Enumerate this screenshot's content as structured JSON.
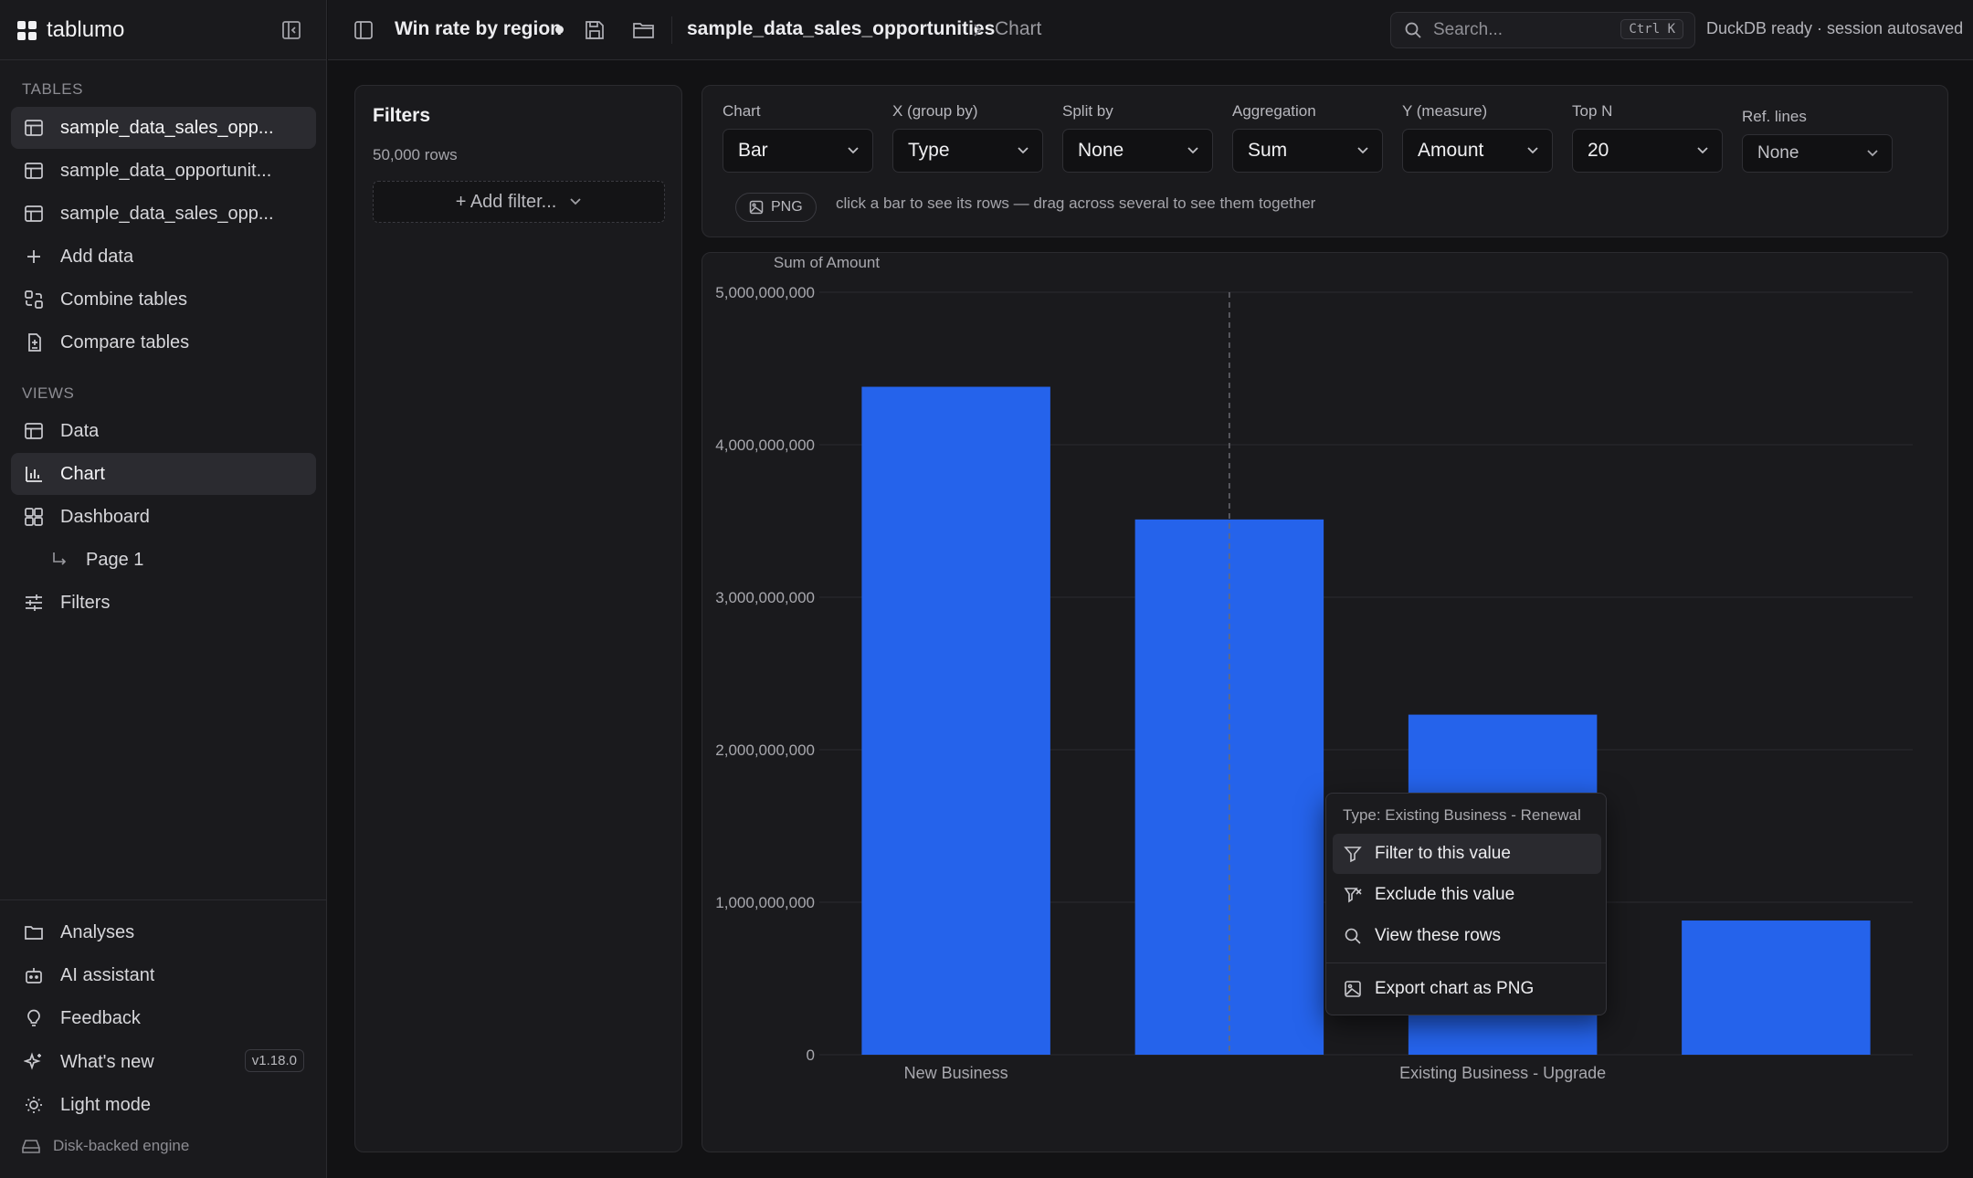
{
  "app": {
    "name": "tablumo",
    "version": "v1.18.0",
    "engine_label": "Disk-backed engine"
  },
  "sidebar": {
    "tables_label": "TABLES",
    "tables": [
      {
        "label": "sample_data_sales_opp...",
        "active": true
      },
      {
        "label": "sample_data_opportunit...",
        "active": false
      },
      {
        "label": "sample_data_sales_opp...",
        "active": false
      }
    ],
    "table_actions": [
      "Add data",
      "Combine tables",
      "Compare tables"
    ],
    "views_label": "VIEWS",
    "views": [
      "Data",
      "Chart",
      "Dashboard"
    ],
    "dashboard_page": "Page 1",
    "filters_item": "Filters",
    "bottom": [
      "Analyses",
      "AI assistant",
      "Feedback",
      "What's new",
      "Light mode"
    ]
  },
  "topbar": {
    "doc_title": "Win rate by region",
    "breadcrumb_table": "sample_data_sales_opportunities",
    "breadcrumb_view": "Chart",
    "search_placeholder": "Search...",
    "search_shortcut": "Ctrl K",
    "status": "DuckDB ready · session autosaved"
  },
  "filters_panel": {
    "title": "Filters",
    "row_count": "50,000 rows",
    "add_filter": "+ Add filter..."
  },
  "config": {
    "chart": {
      "label": "Chart",
      "value": "Bar"
    },
    "x": {
      "label": "X (group by)",
      "value": "Type"
    },
    "split": {
      "label": "Split by",
      "value": "None"
    },
    "aggregation": {
      "label": "Aggregation",
      "value": "Sum"
    },
    "y": {
      "label": "Y (measure)",
      "value": "Amount"
    },
    "topn": {
      "label": "Top N",
      "value": "20"
    },
    "reflines": {
      "label": "Ref. lines",
      "value": "None"
    },
    "png_button": "PNG",
    "hint": "click a bar to see its rows — drag across several to see them together"
  },
  "chart_data": {
    "type": "bar",
    "ylabel": "Sum of Amount",
    "ylim": [
      0,
      5000000000
    ],
    "yticks": [
      0,
      1000000000,
      2000000000,
      3000000000,
      4000000000,
      5000000000
    ],
    "ytick_labels": [
      "0",
      "1,000,000,000",
      "2,000,000,000",
      "3,000,000,000",
      "4,000,000,000",
      "5,000,000,000"
    ],
    "categories": [
      "New Business",
      "Existing Business - Renewal",
      "Existing Business - Upgrade",
      ""
    ],
    "x_tick_labels_shown": [
      "New Business",
      "",
      "Existing Business - Upgrade",
      ""
    ],
    "values": [
      4380000000,
      3510000000,
      2230000000,
      880000000
    ],
    "bar_color": "#2563eb",
    "grid": true,
    "hover_index": 1
  },
  "context_menu": {
    "header": "Type: Existing Business - Renewal",
    "items": [
      "Filter to this value",
      "Exclude this value",
      "View these rows",
      "Export chart as PNG"
    ]
  }
}
